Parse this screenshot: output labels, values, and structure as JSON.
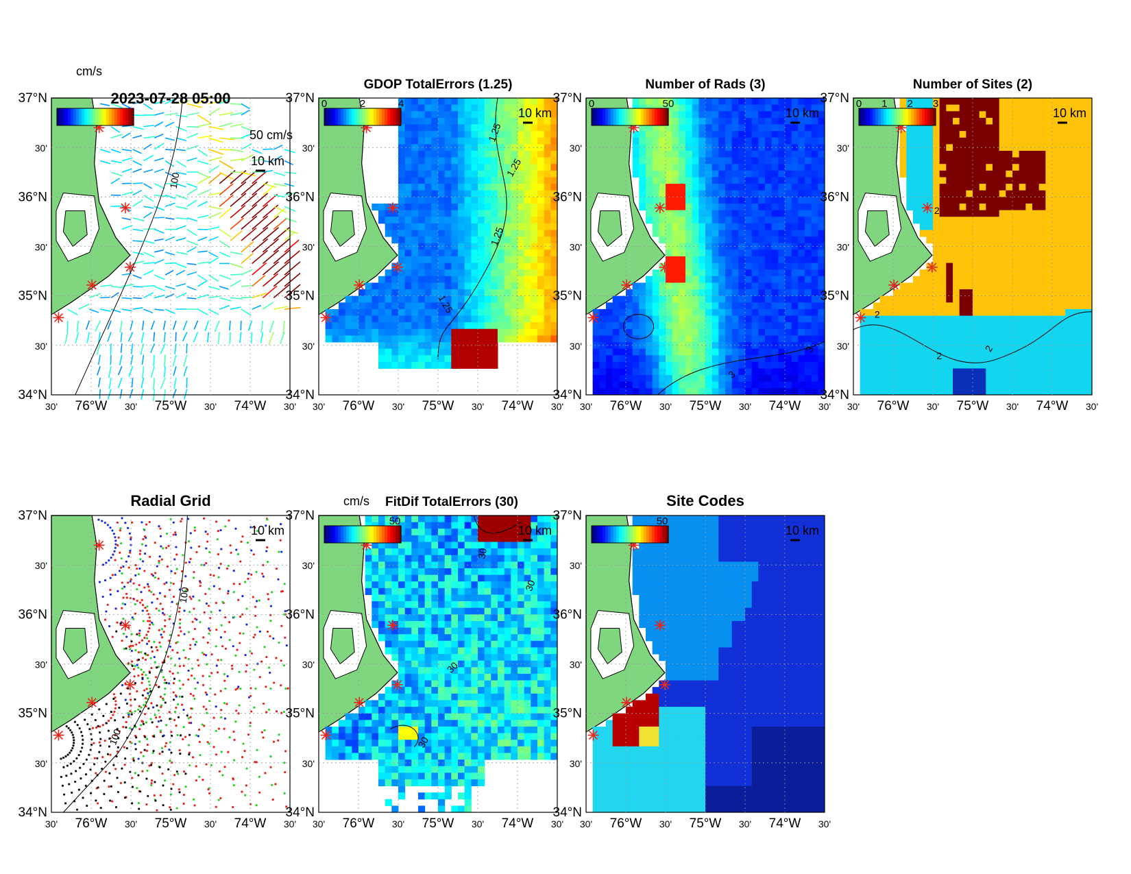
{
  "figure": {
    "panels": [
      {
        "id": "vectors",
        "title": "2023-07-28 05:00",
        "unit_label": "cm/s",
        "scale_label": "50 cm/s",
        "km_label": "10 km",
        "colorbar_ticks": [],
        "contour_labels": [
          "100"
        ]
      },
      {
        "id": "gdop",
        "title": "GDOP TotalErrors (1.25)",
        "unit_label": "",
        "km_label": "10 km",
        "colorbar_ticks": [
          "0",
          "2",
          "4"
        ],
        "contour_labels": [
          "1.25",
          "1.25",
          "1.25",
          "1.25"
        ]
      },
      {
        "id": "rads",
        "title": "Number of Rads (3)",
        "unit_label": "",
        "km_label": "10 km",
        "colorbar_ticks": [
          "0",
          "50"
        ],
        "contour_labels": [
          "3",
          "3"
        ]
      },
      {
        "id": "sites",
        "title": "Number of Sites (2)",
        "unit_label": "",
        "km_label": "10 km",
        "colorbar_ticks": [
          "0",
          "1",
          "2",
          "3"
        ],
        "contour_labels": [
          "2",
          "2",
          "2",
          "2"
        ]
      },
      {
        "id": "radial",
        "title": "Radial Grid",
        "unit_label": "",
        "km_label": "10 km",
        "colorbar_ticks": [],
        "contour_labels": [
          "100",
          "100"
        ]
      },
      {
        "id": "fitdif",
        "title": "FitDif TotalErrors (30)",
        "unit_label": "cm/s",
        "km_label": "10 km",
        "colorbar_ticks": [
          "50"
        ],
        "contour_labels": [
          "30",
          "30",
          "30",
          "30"
        ]
      },
      {
        "id": "sitecodes",
        "title": "Site Codes",
        "unit_label": "",
        "km_label": "10 km",
        "colorbar_ticks": [
          "50"
        ],
        "contour_labels": []
      }
    ],
    "lat_ticks": [
      "37°N",
      "30'",
      "36°N",
      "30'",
      "35°N",
      "30'",
      "34°N"
    ],
    "lon_ticks": [
      "30'",
      "76°W",
      "30'",
      "75°W",
      "30'",
      "74°W",
      "30'"
    ],
    "colors": {
      "land": "#7fd67f",
      "site_marker": "#e8251b",
      "frame": "#000000"
    }
  },
  "chart_data": [
    {
      "type": "heatmap",
      "title": "2023-07-28 05:00",
      "description_field": "surface current vectors",
      "xlim": [
        -76.5,
        -73.5
      ],
      "ylim": [
        34.0,
        37.0
      ],
      "units": "cm/s",
      "scale_arrow": 50
    },
    {
      "type": "heatmap",
      "title": "GDOP TotalErrors (1.25)",
      "xlim": [
        -76.5,
        -73.5
      ],
      "ylim": [
        34.0,
        37.0
      ],
      "clim": [
        0,
        4
      ],
      "contour_level": 1.25
    },
    {
      "type": "heatmap",
      "title": "Number of Rads (3)",
      "xlim": [
        -76.5,
        -73.5
      ],
      "ylim": [
        34.0,
        37.0
      ],
      "clim": [
        0,
        50
      ],
      "contour_level": 3
    },
    {
      "type": "heatmap",
      "title": "Number of Sites (2)",
      "xlim": [
        -76.5,
        -73.5
      ],
      "ylim": [
        34.0,
        37.0
      ],
      "clim": [
        0,
        3
      ],
      "contour_level": 2
    },
    {
      "type": "scatter",
      "title": "Radial Grid",
      "xlim": [
        -76.5,
        -73.5
      ],
      "ylim": [
        34.0,
        37.0
      ],
      "contour_level": 100,
      "sites": [
        {
          "lon": -76.0,
          "lat": 36.72,
          "color": "blue"
        },
        {
          "lon": -75.57,
          "lat": 35.92,
          "color": "red"
        },
        {
          "lon": -75.57,
          "lat": 35.25,
          "color": "green"
        },
        {
          "lon": -76.0,
          "lat": 35.1,
          "color": "red"
        },
        {
          "lon": -76.45,
          "lat": 34.72,
          "color": "black"
        }
      ]
    },
    {
      "type": "heatmap",
      "title": "FitDif TotalErrors (30)",
      "xlim": [
        -76.5,
        -73.5
      ],
      "ylim": [
        34.0,
        37.0
      ],
      "clim": [
        0,
        50
      ],
      "contour_level": 30
    },
    {
      "type": "heatmap",
      "title": "Site Codes",
      "xlim": [
        -76.5,
        -73.5
      ],
      "ylim": [
        34.0,
        37.0
      ],
      "clim": [
        0,
        50
      ]
    }
  ]
}
